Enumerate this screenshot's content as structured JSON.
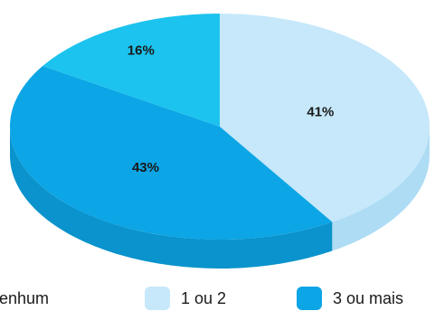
{
  "chart_data": {
    "type": "pie",
    "style": "3d",
    "title": "",
    "slices": [
      {
        "label": "1 ou 2",
        "value": 41,
        "display": "41%",
        "color": "#c6e8fa",
        "side_color": "#aedcf5"
      },
      {
        "label": "3 ou mais",
        "value": 43,
        "display": "43%",
        "color": "#0ca5e6",
        "side_color": "#0a93cc"
      },
      {
        "label": "Nenhum",
        "value": 16,
        "display": "16%",
        "color": "#1cc3ee",
        "side_color": "#17aed6"
      }
    ],
    "legend": {
      "placement": "bottom",
      "items": [
        {
          "label": "Nenhum",
          "color": "#1cc3ee"
        },
        {
          "label": "1 ou 2",
          "color": "#c6e8fa"
        },
        {
          "label": "3 ou mais",
          "color": "#0ca5e6"
        }
      ]
    }
  }
}
